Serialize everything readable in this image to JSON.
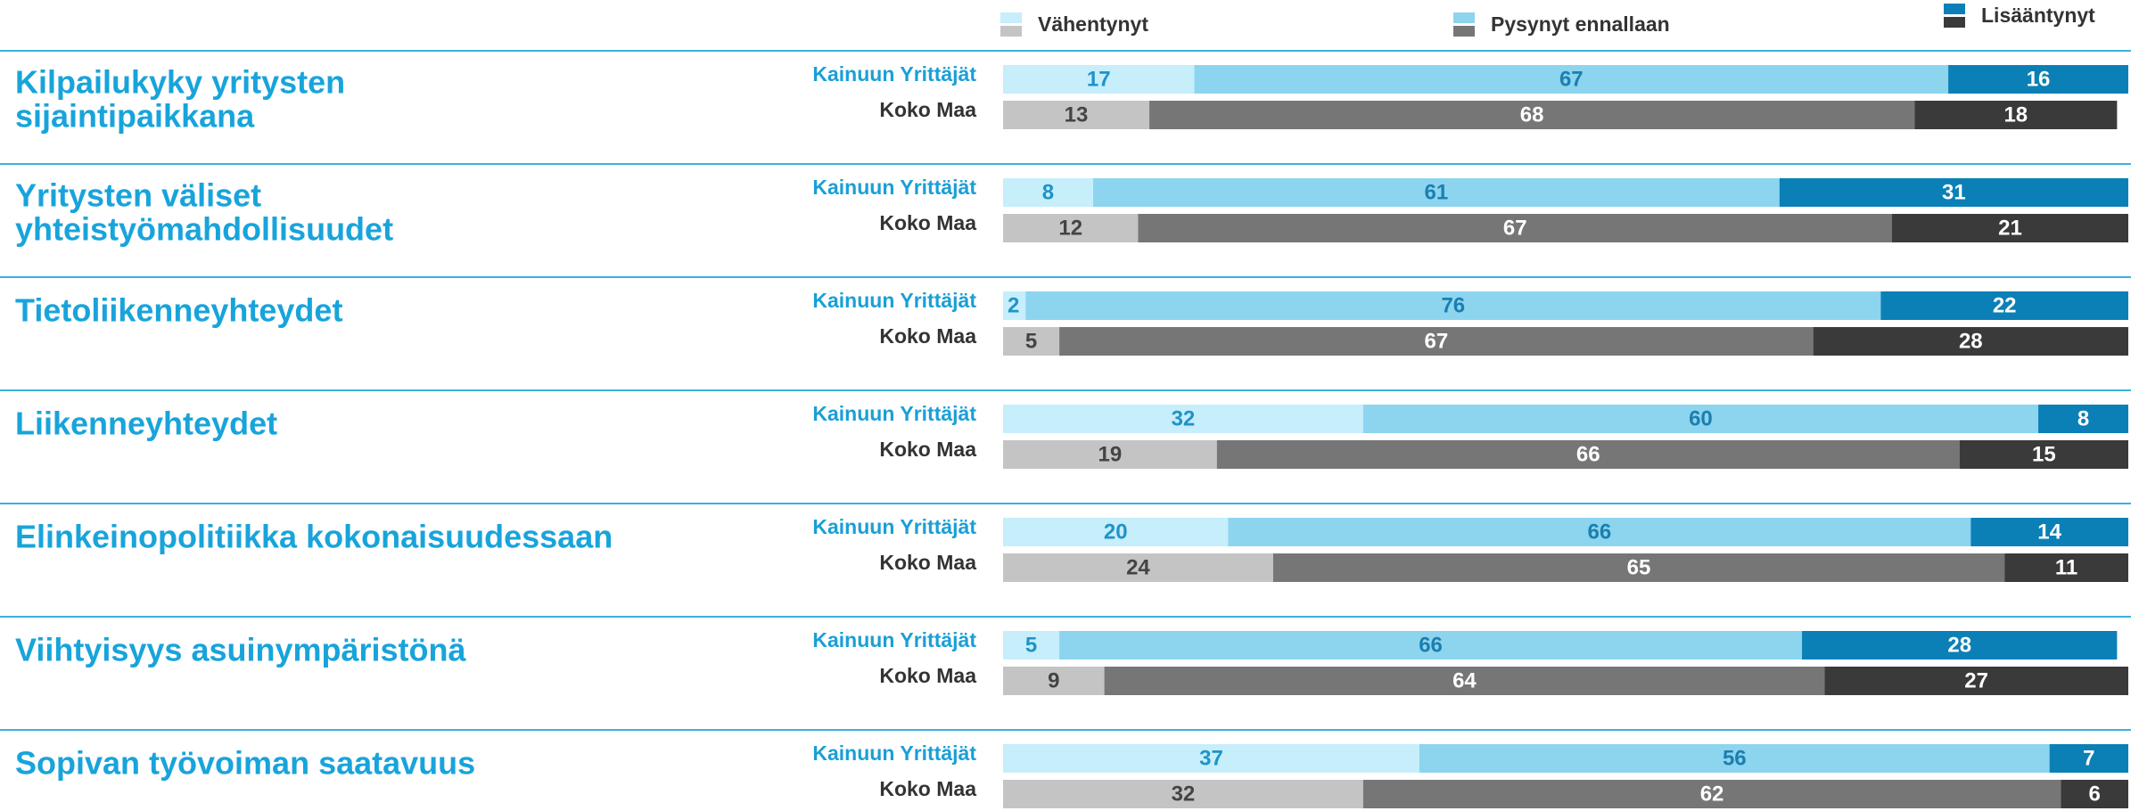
{
  "chart_data": {
    "type": "bar",
    "stacked": true,
    "orientation": "horizontal",
    "xlim": [
      0,
      100
    ],
    "groups": [
      "Kainuun Yrittäjät",
      "Koko Maa"
    ],
    "categories": [
      [
        "Kilpailukyky yritysten",
        "sijaintipaikkana"
      ],
      [
        "Yritysten väliset",
        "yhteistyömahdollisuudet"
      ],
      [
        "Tietoliikenneyhteydet"
      ],
      [
        "Liikenneyhteydet"
      ],
      [
        "Elinkeinopolitiikka kokonaisuudessaan"
      ],
      [
        "Viihtyisyys asuinympäristönä"
      ],
      [
        "Sopivan työvoiman saatavuus"
      ]
    ],
    "series": [
      {
        "name": "Vähentynyt",
        "colors": [
          "#c6eefb",
          "#c4c4c4"
        ],
        "label_colors": [
          "#1f93c9",
          "#444444"
        ],
        "values": [
          [
            17,
            13
          ],
          [
            8,
            12
          ],
          [
            2,
            5
          ],
          [
            32,
            19
          ],
          [
            20,
            24
          ],
          [
            5,
            9
          ],
          [
            37,
            32
          ]
        ]
      },
      {
        "name": "Pysynyt ennallaan",
        "colors": [
          "#8dd4ef",
          "#767676"
        ],
        "label_colors": [
          "#1b7fb0",
          "#ffffff"
        ],
        "values": [
          [
            67,
            68
          ],
          [
            61,
            67
          ],
          [
            76,
            67
          ],
          [
            60,
            66
          ],
          [
            66,
            65
          ],
          [
            66,
            64
          ],
          [
            56,
            62
          ]
        ]
      },
      {
        "name": "Lisääntynyt",
        "colors": [
          "#0b80b6",
          "#3a3a3a"
        ],
        "label_colors": [
          "#ffffff",
          "#ffffff"
        ],
        "values": [
          [
            16,
            18
          ],
          [
            31,
            21
          ],
          [
            22,
            28
          ],
          [
            8,
            15
          ],
          [
            14,
            11
          ],
          [
            28,
            27
          ],
          [
            7,
            6
          ]
        ]
      }
    ]
  }
}
